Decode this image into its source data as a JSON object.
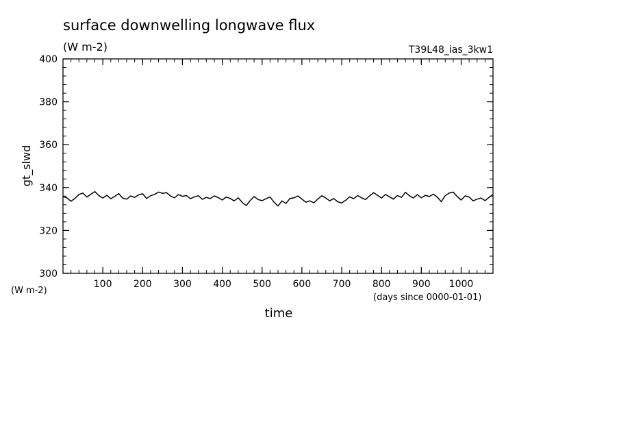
{
  "chart_data": {
    "type": "line",
    "title": "surface downwelling longwave flux",
    "subtitle": "(W m-2)",
    "run_label": "T39L48_ias_3kw1",
    "ylabel": "gt_slwd",
    "yunit": "(W m-2)",
    "xlabel": "time",
    "xunit": "(days since 0000-01-01)",
    "xlim": [
      0,
      1080
    ],
    "ylim": [
      300,
      400
    ],
    "xticks": [
      100,
      200,
      300,
      400,
      500,
      600,
      700,
      800,
      900,
      1000
    ],
    "xtick_labels": [
      "100",
      "200",
      "300",
      "400",
      "500",
      "600",
      "700",
      "800",
      "900",
      "1000"
    ],
    "yticks": [
      300,
      320,
      340,
      360,
      380,
      400
    ],
    "ytick_labels": [
      "300",
      "320",
      "340",
      "360",
      "380",
      "400"
    ],
    "grid": false,
    "line_color": "#000000",
    "series": [
      {
        "x": [
          0,
          10,
          20,
          30,
          40,
          50,
          60,
          70,
          80,
          90,
          100,
          110,
          120,
          130,
          140,
          150,
          160,
          170,
          180,
          190,
          200,
          210,
          220,
          230,
          240,
          250,
          260,
          270,
          280,
          290,
          300,
          310,
          320,
          330,
          340,
          350,
          360,
          370,
          380,
          390,
          400,
          410,
          420,
          430,
          440,
          450,
          460,
          470,
          480,
          490,
          500,
          510,
          520,
          530,
          540,
          550,
          560,
          570,
          580,
          590,
          600,
          610,
          620,
          630,
          640,
          650,
          660,
          670,
          680,
          690,
          700,
          710,
          720,
          730,
          740,
          750,
          760,
          770,
          780,
          790,
          800,
          810,
          820,
          830,
          840,
          850,
          860,
          870,
          880,
          890,
          900,
          910,
          920,
          930,
          940,
          950,
          960,
          970,
          980,
          990,
          1000,
          1010,
          1020,
          1030,
          1040,
          1050,
          1060,
          1070,
          1080
        ],
        "values": [
          335.8,
          335.2,
          333.6,
          334.9,
          336.8,
          337.4,
          335.6,
          336.9,
          338.1,
          336.3,
          335.1,
          336.4,
          334.8,
          335.9,
          337.2,
          335.0,
          334.6,
          336.1,
          335.4,
          336.6,
          337.1,
          334.9,
          336.2,
          336.8,
          337.9,
          337.3,
          337.6,
          336.1,
          335.2,
          336.7,
          335.9,
          336.3,
          334.8,
          335.7,
          336.2,
          334.5,
          335.4,
          334.9,
          336.1,
          335.3,
          334.2,
          335.6,
          334.9,
          333.8,
          335.2,
          333.1,
          331.6,
          333.9,
          335.8,
          334.4,
          333.9,
          334.8,
          335.6,
          333.2,
          331.4,
          333.8,
          332.6,
          334.9,
          335.2,
          336.1,
          334.6,
          333.2,
          333.8,
          332.9,
          334.6,
          336.2,
          335.1,
          333.8,
          334.9,
          333.4,
          332.8,
          334.1,
          335.7,
          334.8,
          336.3,
          335.2,
          334.4,
          336.1,
          337.6,
          336.4,
          335.1,
          336.8,
          335.7,
          334.6,
          336.3,
          335.4,
          337.8,
          336.2,
          335.1,
          336.7,
          335.2,
          336.4,
          335.8,
          336.9,
          335.6,
          333.4,
          336.2,
          337.4,
          337.9,
          335.8,
          334.2,
          336.1,
          335.6,
          333.8,
          334.6,
          335.1,
          333.9,
          335.4,
          336.8
        ]
      }
    ]
  }
}
